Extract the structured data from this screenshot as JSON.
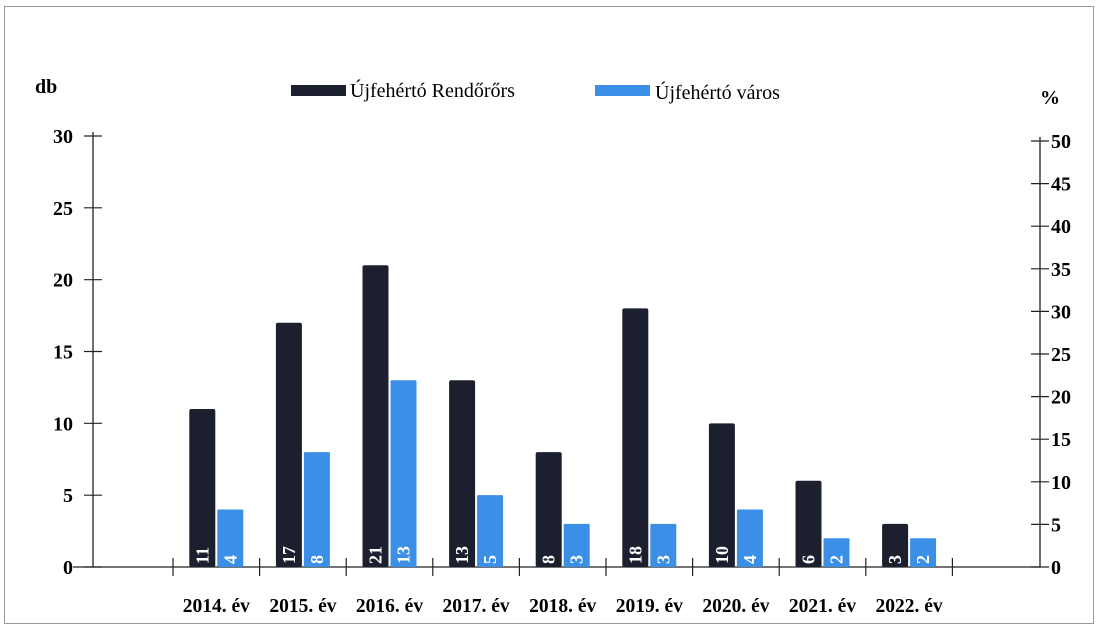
{
  "colors": {
    "series1": "#1c1f2e",
    "series2": "#3c8fe6",
    "axis": "#222222",
    "label_text": "#ffffff"
  },
  "chart_data": {
    "type": "bar",
    "left_axis_unit": "db",
    "right_axis_unit": "%",
    "categories": [
      "2014. év",
      "2015. év",
      "2016. év",
      "2017. év",
      "2018. év",
      "2019. év",
      "2020. év",
      "2021. év",
      "2022. év"
    ],
    "series": [
      {
        "name": "Újfehértó Rendőrőrs",
        "values": [
          11,
          17,
          21,
          13,
          8,
          18,
          10,
          6,
          3
        ],
        "color": "#1c1f2e"
      },
      {
        "name": "Újfehértó város",
        "values": [
          4,
          8,
          13,
          5,
          3,
          3,
          4,
          2,
          2
        ],
        "color": "#3c8fe6"
      }
    ],
    "data_labels": {
      "series1": [
        "11",
        "17",
        "21",
        "13",
        "8",
        "18",
        "10",
        "6",
        "3"
      ],
      "series2": [
        "4",
        "8",
        "13",
        "5",
        "3",
        "3",
        "4",
        "2",
        "2"
      ]
    },
    "ylim_left": [
      0,
      30
    ],
    "yticks_left": [
      "0",
      "5",
      "10",
      "15",
      "20",
      "25",
      "30"
    ],
    "ylim_right": [
      0,
      50
    ],
    "yticks_right": [
      "0",
      "5",
      "10",
      "15",
      "20",
      "25",
      "30",
      "35",
      "40",
      "45",
      "50"
    ],
    "legend_position": "top-center",
    "grid": false
  }
}
